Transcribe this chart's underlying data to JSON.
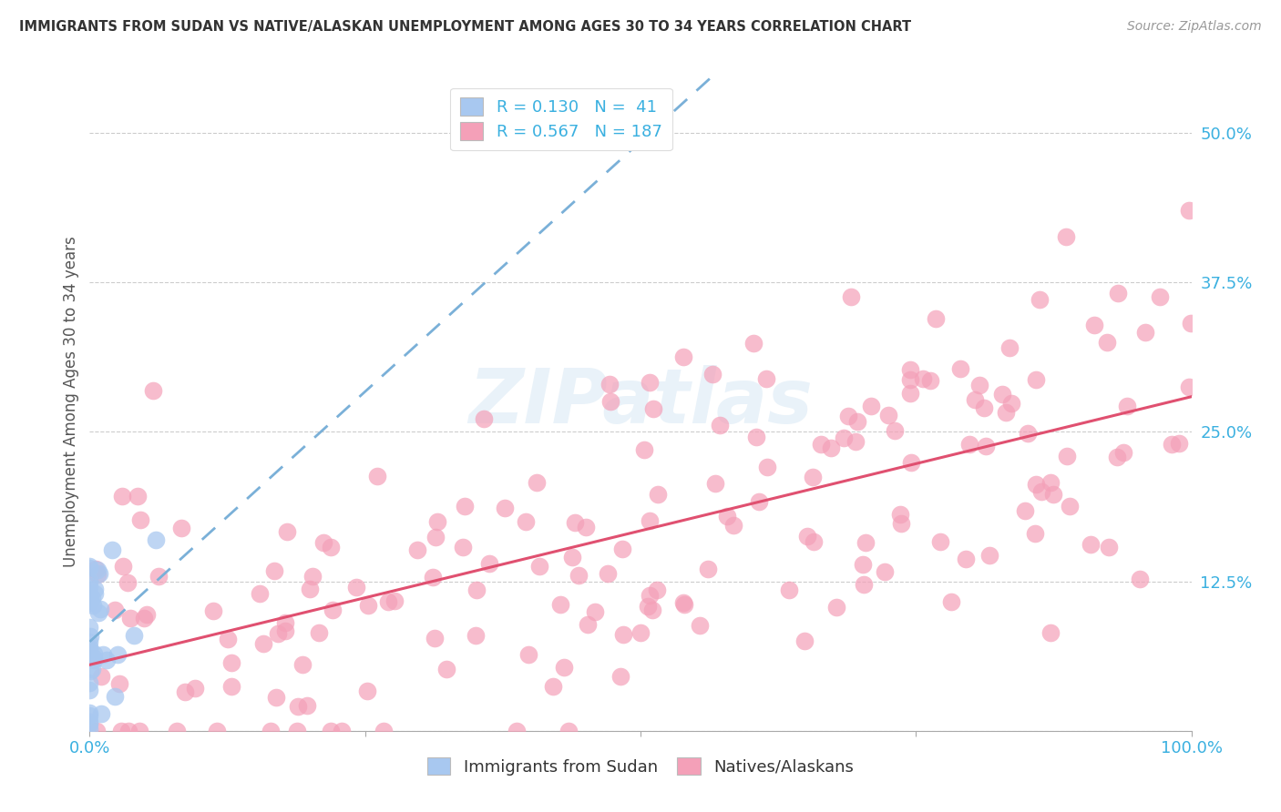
{
  "title": "IMMIGRANTS FROM SUDAN VS NATIVE/ALASKAN UNEMPLOYMENT AMONG AGES 30 TO 34 YEARS CORRELATION CHART",
  "source": "Source: ZipAtlas.com",
  "ylabel": "Unemployment Among Ages 30 to 34 years",
  "xlim": [
    0.0,
    1.0
  ],
  "ylim": [
    0.0,
    0.55
  ],
  "xticks": [
    0.0,
    0.25,
    0.5,
    0.75,
    1.0
  ],
  "xticklabels": [
    "0.0%",
    "",
    "",
    "",
    "100.0%"
  ],
  "yticks": [
    0.0,
    0.125,
    0.25,
    0.375,
    0.5
  ],
  "yticklabels": [
    "",
    "12.5%",
    "25.0%",
    "37.5%",
    "50.0%"
  ],
  "sudan_R": 0.13,
  "sudan_N": 41,
  "native_R": 0.567,
  "native_N": 187,
  "sudan_color": "#a8c8f0",
  "native_color": "#f4a0b8",
  "sudan_line_color": "#7ab0d8",
  "native_line_color": "#e05070",
  "legend_label_sudan": "Immigrants from Sudan",
  "legend_label_native": "Natives/Alaskans",
  "watermark": "ZIPatlas",
  "tick_color": "#3ab0e0",
  "grid_color": "#cccccc",
  "title_color": "#333333",
  "source_color": "#999999",
  "ylabel_color": "#555555"
}
